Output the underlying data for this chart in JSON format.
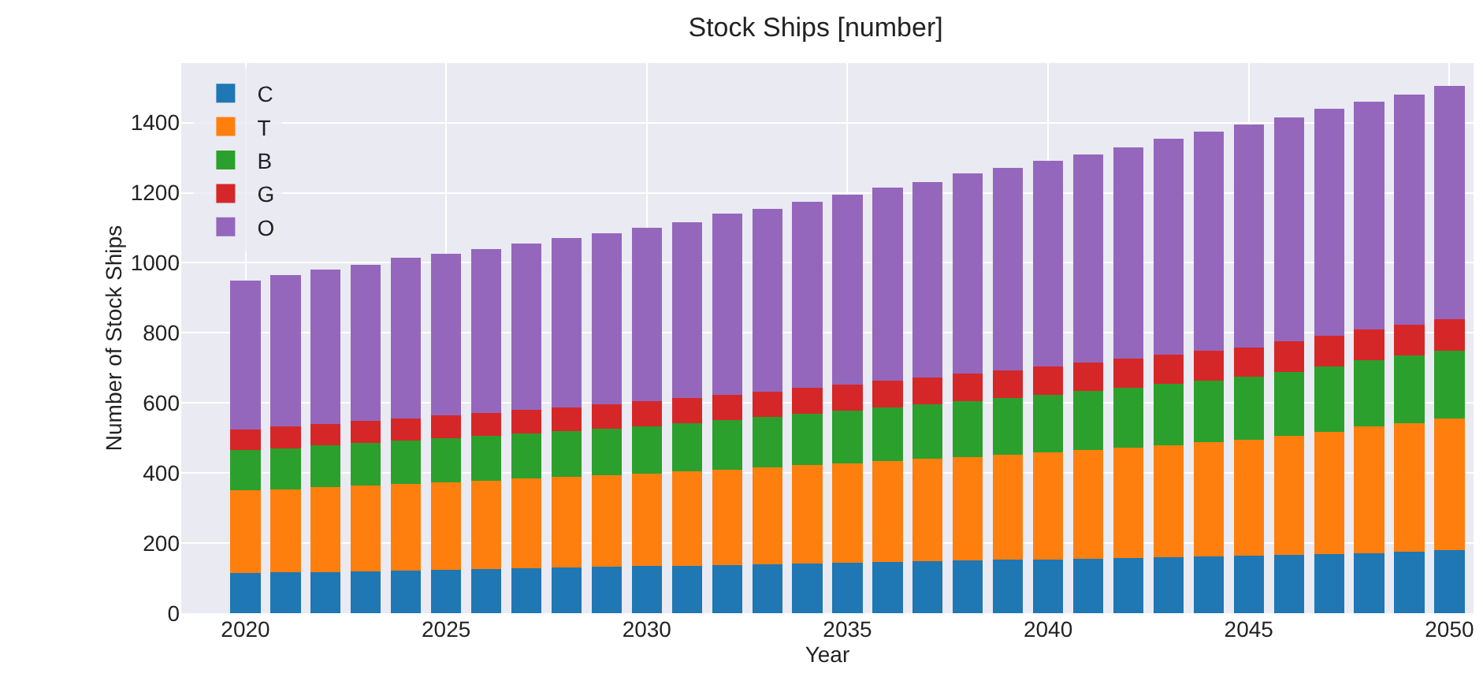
{
  "chart_data": {
    "type": "bar",
    "title": "Stock Ships [number]",
    "xlabel": "Year",
    "ylabel": "Number of Stock Ships",
    "stacked": true,
    "x": [
      2020,
      2021,
      2022,
      2023,
      2024,
      2025,
      2026,
      2027,
      2028,
      2029,
      2030,
      2031,
      2032,
      2033,
      2034,
      2035,
      2036,
      2037,
      2038,
      2039,
      2040,
      2041,
      2042,
      2043,
      2044,
      2045,
      2046,
      2047,
      2048,
      2049,
      2050
    ],
    "series": [
      {
        "name": "C",
        "color": "#1f77b4",
        "values": [
          115,
          116,
          118,
          120,
          122,
          124,
          126,
          128,
          130,
          132,
          134,
          136,
          138,
          140,
          142,
          144,
          146,
          148,
          150,
          152,
          154,
          156,
          158,
          160,
          162,
          164,
          166,
          168,
          172,
          176,
          180
        ]
      },
      {
        "name": "T",
        "color": "#ff7f0e",
        "values": [
          235,
          238,
          241,
          244,
          247,
          250,
          253,
          256,
          259,
          262,
          265,
          268,
          272,
          276,
          280,
          284,
          288,
          292,
          296,
          300,
          305,
          310,
          315,
          320,
          325,
          330,
          340,
          350,
          360,
          367,
          375
        ]
      },
      {
        "name": "B",
        "color": "#2ca02c",
        "values": [
          115,
          117,
          119,
          121,
          123,
          125,
          127,
          129,
          131,
          133,
          135,
          138,
          141,
          144,
          147,
          150,
          153,
          156,
          159,
          162,
          165,
          168,
          171,
          174,
          177,
          180,
          183,
          186,
          189,
          192,
          195
        ]
      },
      {
        "name": "G",
        "color": "#d62728",
        "values": [
          60,
          61,
          62,
          63,
          64,
          65,
          66,
          67,
          68,
          69,
          70,
          71,
          72,
          73,
          74,
          75,
          76,
          77,
          78,
          79,
          80,
          81,
          82,
          83,
          84,
          85,
          86,
          87,
          88,
          89,
          90
        ]
      },
      {
        "name": "O",
        "color": "#9467bd",
        "values": [
          425,
          433,
          440,
          447,
          459,
          461,
          468,
          475,
          482,
          489,
          496,
          502,
          517,
          522,
          532,
          542,
          552,
          557,
          572,
          577,
          586,
          595,
          604,
          618,
          627,
          636,
          640,
          649,
          651,
          656,
          665
        ]
      }
    ],
    "xlim": [
      2018.4,
      2050.6
    ],
    "xticks": [
      2020,
      2025,
      2030,
      2035,
      2040,
      2045,
      2050
    ],
    "ylim": [
      0,
      1570
    ],
    "yticks": [
      0,
      200,
      400,
      600,
      800,
      1000,
      1200,
      1400
    ],
    "grid": true,
    "legend": "top left"
  }
}
